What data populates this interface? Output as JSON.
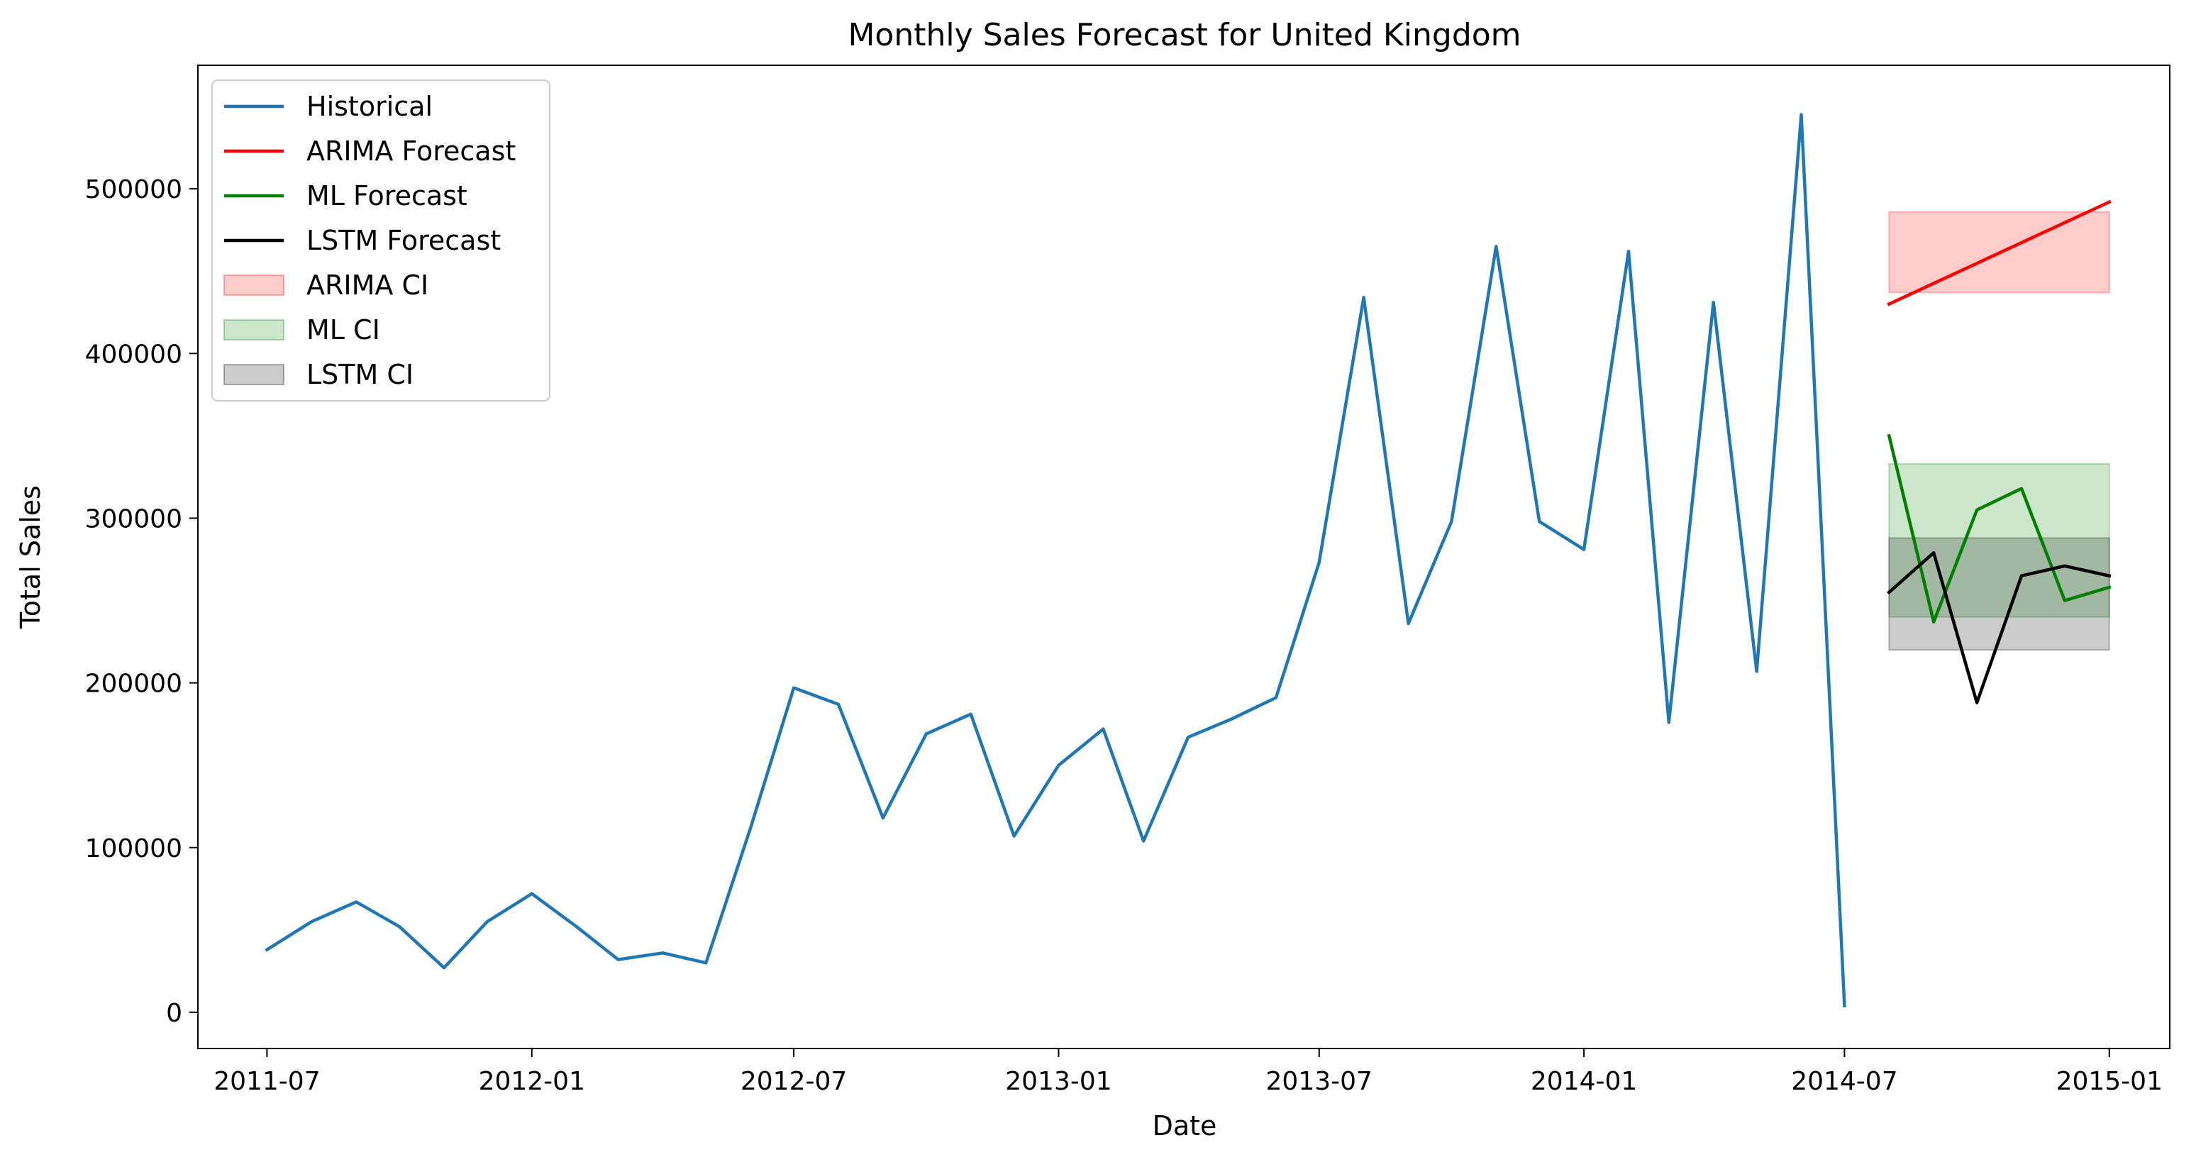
{
  "chart_data": {
    "type": "line",
    "title": "Monthly Sales Forecast for United Kingdom",
    "xlabel": "Date",
    "ylabel": "Total Sales",
    "ylim": [
      -22000,
      575000
    ],
    "xlim": [
      "2011-05-14",
      "2015-02-12"
    ],
    "grid": false,
    "legend_position": "top-left",
    "x_ticks": [
      "2011-07",
      "2012-01",
      "2012-07",
      "2013-01",
      "2013-07",
      "2014-01",
      "2014-07",
      "2015-01"
    ],
    "y_ticks": [
      0,
      100000,
      200000,
      300000,
      400000,
      500000
    ],
    "series": [
      {
        "name": "Historical",
        "color": "#1f77b4",
        "x": [
          "2011-07-01",
          "2011-08-01",
          "2011-09-01",
          "2011-10-01",
          "2011-11-01",
          "2011-12-01",
          "2012-01-01",
          "2012-02-01",
          "2012-03-01",
          "2012-04-01",
          "2012-05-01",
          "2012-06-01",
          "2012-07-01",
          "2012-08-01",
          "2012-09-01",
          "2012-10-01",
          "2012-11-01",
          "2012-12-01",
          "2013-01-01",
          "2013-02-01",
          "2013-03-01",
          "2013-04-01",
          "2013-05-01",
          "2013-06-01",
          "2013-07-01",
          "2013-08-01",
          "2013-09-01",
          "2013-10-01",
          "2013-11-01",
          "2013-12-01",
          "2014-01-01",
          "2014-02-01",
          "2014-03-01",
          "2014-04-01",
          "2014-05-01",
          "2014-06-01",
          "2014-07-01"
        ],
        "values": [
          38000,
          55000,
          67000,
          52000,
          27000,
          55000,
          72000,
          52000,
          32000,
          36000,
          30000,
          112000,
          197000,
          187000,
          118000,
          169000,
          181000,
          107000,
          150000,
          172000,
          104000,
          167000,
          178000,
          191000,
          273000,
          434000,
          236000,
          298000,
          465000,
          298000,
          281000,
          462000,
          176000,
          431000,
          207000,
          545000,
          4000
        ]
      },
      {
        "name": "ARIMA Forecast",
        "color": "#ff0000",
        "x": [
          "2014-08-01",
          "2015-01-01"
        ],
        "values": [
          430000,
          492000
        ]
      },
      {
        "name": "ML Forecast",
        "color": "#008000",
        "x": [
          "2014-08-01",
          "2014-09-01",
          "2014-10-01",
          "2014-11-01",
          "2014-12-01",
          "2015-01-01"
        ],
        "values": [
          350000,
          237000,
          305000,
          318000,
          250000,
          258000
        ]
      },
      {
        "name": "LSTM Forecast",
        "color": "#000000",
        "x": [
          "2014-08-01",
          "2014-09-01",
          "2014-10-01",
          "2014-11-01",
          "2014-12-01",
          "2015-01-01"
        ],
        "values": [
          255000,
          279000,
          188000,
          265000,
          271000,
          265000
        ]
      }
    ],
    "bands": [
      {
        "name": "ARIMA CI",
        "color": "#ff0000",
        "x": [
          "2014-08-01",
          "2015-01-01"
        ],
        "lower": 437000,
        "upper": 486000
      },
      {
        "name": "ML CI",
        "color": "#008000",
        "x": [
          "2014-08-01",
          "2015-01-01"
        ],
        "lower": 240000,
        "upper": 333000
      },
      {
        "name": "LSTM CI",
        "color": "#000000",
        "x": [
          "2014-08-01",
          "2015-01-01"
        ],
        "lower": 220000,
        "upper": 288000
      }
    ]
  }
}
